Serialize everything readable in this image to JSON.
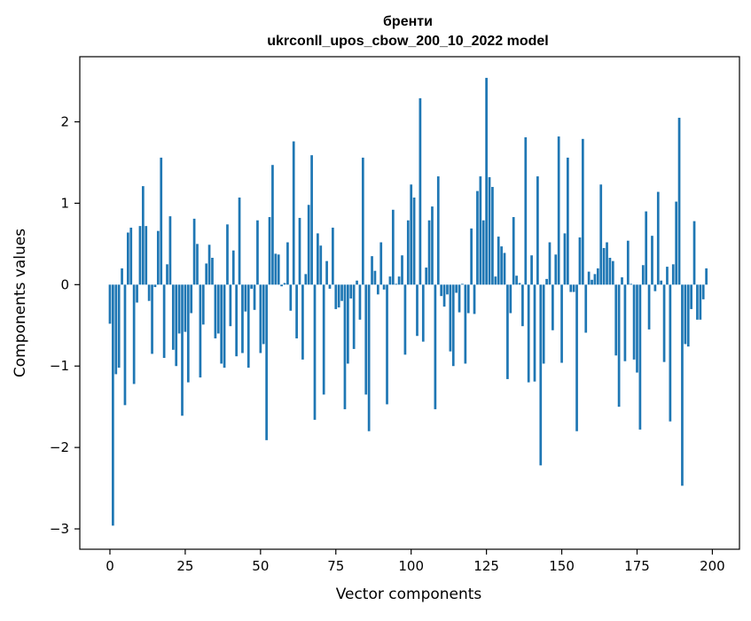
{
  "chart_data": {
    "type": "bar",
    "title_lines": [
      "бренти",
      "ukrconll_upos_cbow_200_10_2022 model"
    ],
    "xlabel": "Vector components",
    "ylabel": "Components values",
    "xlim": [
      -10,
      209
    ],
    "ylim": [
      -3.25,
      2.8
    ],
    "xticks": [
      0,
      25,
      50,
      75,
      100,
      125,
      150,
      175,
      200
    ],
    "xtick_labels": [
      "0",
      "25",
      "50",
      "75",
      "100",
      "125",
      "150",
      "175",
      "200"
    ],
    "yticks": [
      -3,
      -2,
      -1,
      0,
      1,
      2
    ],
    "ytick_labels": [
      "−3",
      "−2",
      "−1",
      "0",
      "1",
      "2"
    ],
    "grid": false,
    "legend": "none",
    "bar_color": "#1f77b4",
    "values": [
      -0.48,
      -2.96,
      -1.1,
      -1.02,
      0.2,
      -1.48,
      0.64,
      0.7,
      -1.22,
      -0.22,
      0.72,
      1.21,
      0.72,
      -0.2,
      -0.85,
      -0.03,
      0.66,
      1.56,
      -0.9,
      0.25,
      0.84,
      -0.8,
      -1.0,
      -0.6,
      -1.61,
      -0.58,
      -1.2,
      -0.35,
      0.81,
      0.5,
      -1.14,
      -0.49,
      0.26,
      0.49,
      0.33,
      -0.66,
      -0.6,
      -0.97,
      -1.02,
      0.74,
      -0.51,
      0.42,
      -0.88,
      1.07,
      -0.84,
      -0.33,
      -1.02,
      -0.05,
      -0.31,
      0.79,
      -0.84,
      -0.73,
      -1.91,
      0.83,
      1.47,
      0.38,
      0.37,
      -0.02,
      0.02,
      0.52,
      -0.32,
      1.76,
      -0.66,
      0.82,
      -0.92,
      0.13,
      0.98,
      1.59,
      -1.66,
      0.63,
      0.48,
      -1.35,
      0.29,
      -0.05,
      0.7,
      -0.3,
      -0.28,
      -0.2,
      -1.53,
      -0.97,
      -0.17,
      -0.79,
      0.05,
      -0.43,
      1.56,
      -1.35,
      -1.8,
      0.35,
      0.17,
      -0.12,
      0.52,
      -0.06,
      -1.47,
      0.1,
      0.92,
      0.01,
      0.1,
      0.36,
      -0.86,
      0.79,
      1.23,
      1.07,
      -0.63,
      2.29,
      -0.7,
      0.21,
      0.79,
      0.96,
      -1.53,
      1.33,
      -0.14,
      -0.27,
      -0.12,
      -0.82,
      -1.0,
      -0.1,
      -0.34,
      0.01,
      -0.97,
      -0.35,
      0.69,
      -0.36,
      1.15,
      1.33,
      0.79,
      2.54,
      1.32,
      1.2,
      0.1,
      0.59,
      0.47,
      0.39,
      -1.16,
      -0.35,
      0.83,
      0.11,
      0.02,
      -0.51,
      1.81,
      -1.2,
      0.36,
      -1.19,
      1.33,
      -2.22,
      -0.97,
      0.07,
      0.52,
      -0.56,
      0.37,
      1.82,
      -0.96,
      0.63,
      1.56,
      -0.09,
      -0.09,
      -1.8,
      0.58,
      1.79,
      -0.59,
      0.16,
      0.06,
      0.13,
      0.2,
      1.23,
      0.45,
      0.52,
      0.33,
      0.29,
      -0.87,
      -1.5,
      0.09,
      -0.94,
      0.54,
      0.01,
      -0.92,
      -1.08,
      -1.78,
      0.24,
      0.9,
      -0.55,
      0.6,
      -0.08,
      1.14,
      0.05,
      -0.95,
      0.22,
      -1.68,
      0.25,
      1.02,
      2.05,
      -2.47,
      -0.73,
      -0.76,
      -0.3,
      0.78,
      -0.43,
      -0.43,
      -0.18,
      0.2
    ]
  }
}
